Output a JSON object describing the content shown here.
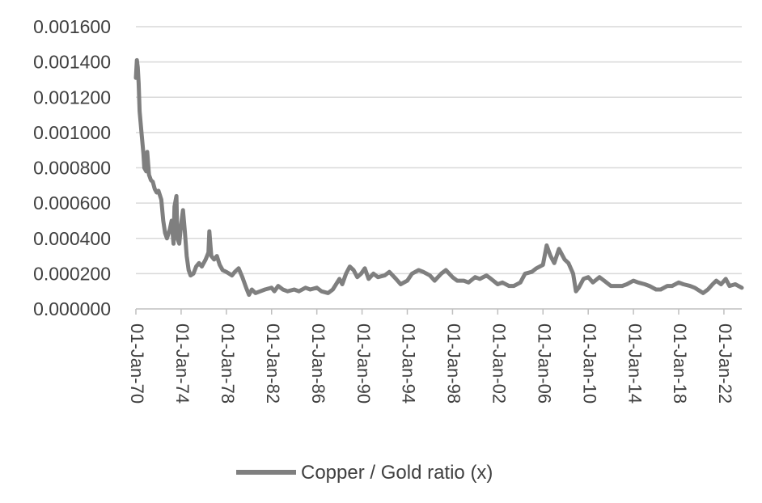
{
  "chart_data": {
    "type": "line",
    "title": "",
    "xlabel": "",
    "ylabel": "",
    "ylim": [
      0,
      0.0016
    ],
    "xlim": [
      "1970-01-01",
      "2023-08-01"
    ],
    "y_ticks": [
      "0.000000",
      "0.000200",
      "0.000400",
      "0.000600",
      "0.000800",
      "0.001000",
      "0.001200",
      "0.001400",
      "0.001600"
    ],
    "x_ticks": [
      {
        "date": "1970-01-01",
        "label": "01-Jan-70"
      },
      {
        "date": "1974-01-01",
        "label": "01-Jan-74"
      },
      {
        "date": "1978-01-01",
        "label": "01-Jan-78"
      },
      {
        "date": "1982-01-01",
        "label": "01-Jan-82"
      },
      {
        "date": "1986-01-01",
        "label": "01-Jan-86"
      },
      {
        "date": "1990-01-01",
        "label": "01-Jan-90"
      },
      {
        "date": "1994-01-01",
        "label": "01-Jan-94"
      },
      {
        "date": "1998-01-01",
        "label": "01-Jan-98"
      },
      {
        "date": "2002-01-01",
        "label": "01-Jan-02"
      },
      {
        "date": "2006-01-01",
        "label": "01-Jan-06"
      },
      {
        "date": "2010-01-01",
        "label": "01-Jan-10"
      },
      {
        "date": "2014-01-01",
        "label": "01-Jan-14"
      },
      {
        "date": "2018-01-01",
        "label": "01-Jan-18"
      },
      {
        "date": "2022-01-01",
        "label": "01-Jan-22"
      }
    ],
    "grid": true,
    "legend_position": "bottom",
    "series": [
      {
        "name": "Copper / Gold ratio (x)",
        "color": "#7f7f7f",
        "points": [
          [
            "1970-01-01",
            0.00131
          ],
          [
            "1970-02-01",
            0.00141
          ],
          [
            "1970-03-01",
            0.00137
          ],
          [
            "1970-04-01",
            0.00128
          ],
          [
            "1970-05-01",
            0.00112
          ],
          [
            "1970-07-01",
            0.001
          ],
          [
            "1970-09-01",
            0.00088
          ],
          [
            "1970-10-01",
            0.0008
          ],
          [
            "1970-12-01",
            0.00078
          ],
          [
            "1971-01-01",
            0.00089
          ],
          [
            "1971-03-01",
            0.00076
          ],
          [
            "1971-05-01",
            0.00073
          ],
          [
            "1971-07-01",
            0.00072
          ],
          [
            "1971-09-01",
            0.00068
          ],
          [
            "1971-11-01",
            0.00066
          ],
          [
            "1972-01-01",
            0.00067
          ],
          [
            "1972-04-01",
            0.00062
          ],
          [
            "1972-06-01",
            0.0005
          ],
          [
            "1972-08-01",
            0.00043
          ],
          [
            "1972-10-01",
            0.0004
          ],
          [
            "1973-01-01",
            0.00045
          ],
          [
            "1973-03-01",
            0.0005
          ],
          [
            "1973-05-01",
            0.00037
          ],
          [
            "1973-06-01",
            0.00058
          ],
          [
            "1973-08-01",
            0.00064
          ],
          [
            "1973-09-01",
            0.0004
          ],
          [
            "1973-11-01",
            0.00037
          ],
          [
            "1974-01-01",
            0.00048
          ],
          [
            "1974-03-01",
            0.00056
          ],
          [
            "1974-05-01",
            0.00044
          ],
          [
            "1974-07-01",
            0.0003
          ],
          [
            "1974-09-01",
            0.00022
          ],
          [
            "1974-11-01",
            0.00019
          ],
          [
            "1975-02-01",
            0.0002
          ],
          [
            "1975-05-01",
            0.00024
          ],
          [
            "1975-08-01",
            0.00026
          ],
          [
            "1975-11-01",
            0.00024
          ],
          [
            "1976-03-01",
            0.00028
          ],
          [
            "1976-06-01",
            0.00032
          ],
          [
            "1976-07-01",
            0.00044
          ],
          [
            "1976-09-01",
            0.0003
          ],
          [
            "1976-12-01",
            0.00028
          ],
          [
            "1977-03-01",
            0.0003
          ],
          [
            "1977-06-01",
            0.00025
          ],
          [
            "1977-09-01",
            0.00022
          ],
          [
            "1978-01-01",
            0.00021
          ],
          [
            "1978-04-01",
            0.0002
          ],
          [
            "1978-07-01",
            0.00019
          ],
          [
            "1978-10-01",
            0.00021
          ],
          [
            "1979-02-01",
            0.00023
          ],
          [
            "1979-06-01",
            0.00018
          ],
          [
            "1979-10-01",
            0.00012
          ],
          [
            "1980-01-01",
            8e-05
          ],
          [
            "1980-04-01",
            0.00011
          ],
          [
            "1980-08-01",
            9e-05
          ],
          [
            "1981-01-01",
            0.0001
          ],
          [
            "1981-06-01",
            0.00011
          ],
          [
            "1982-01-01",
            0.00012
          ],
          [
            "1982-04-01",
            0.0001
          ],
          [
            "1982-08-01",
            0.00013
          ],
          [
            "1983-01-01",
            0.00011
          ],
          [
            "1983-06-01",
            0.0001
          ],
          [
            "1984-01-01",
            0.00011
          ],
          [
            "1984-06-01",
            0.0001
          ],
          [
            "1985-01-01",
            0.00012
          ],
          [
            "1985-06-01",
            0.00011
          ],
          [
            "1986-01-01",
            0.00012
          ],
          [
            "1986-06-01",
            0.0001
          ],
          [
            "1987-01-01",
            9e-05
          ],
          [
            "1987-06-01",
            0.00011
          ],
          [
            "1988-01-01",
            0.00017
          ],
          [
            "1988-04-01",
            0.00014
          ],
          [
            "1988-08-01",
            0.0002
          ],
          [
            "1988-12-01",
            0.00024
          ],
          [
            "1989-04-01",
            0.00022
          ],
          [
            "1989-08-01",
            0.00018
          ],
          [
            "1989-12-01",
            0.0002
          ],
          [
            "1990-04-01",
            0.00023
          ],
          [
            "1990-08-01",
            0.00017
          ],
          [
            "1991-01-01",
            0.0002
          ],
          [
            "1991-06-01",
            0.00018
          ],
          [
            "1992-01-01",
            0.00019
          ],
          [
            "1992-06-01",
            0.00021
          ],
          [
            "1993-01-01",
            0.00017
          ],
          [
            "1993-06-01",
            0.00014
          ],
          [
            "1994-01-01",
            0.00016
          ],
          [
            "1994-06-01",
            0.0002
          ],
          [
            "1995-01-01",
            0.00022
          ],
          [
            "1995-06-01",
            0.00021
          ],
          [
            "1996-01-01",
            0.00019
          ],
          [
            "1996-06-01",
            0.00016
          ],
          [
            "1997-01-01",
            0.0002
          ],
          [
            "1997-06-01",
            0.00022
          ],
          [
            "1998-01-01",
            0.00018
          ],
          [
            "1998-06-01",
            0.00016
          ],
          [
            "1999-01-01",
            0.00016
          ],
          [
            "1999-06-01",
            0.00015
          ],
          [
            "2000-01-01",
            0.00018
          ],
          [
            "2000-06-01",
            0.00017
          ],
          [
            "2001-01-01",
            0.00019
          ],
          [
            "2001-06-01",
            0.00017
          ],
          [
            "2002-01-01",
            0.00014
          ],
          [
            "2002-06-01",
            0.00015
          ],
          [
            "2003-01-01",
            0.00013
          ],
          [
            "2003-06-01",
            0.00013
          ],
          [
            "2004-01-01",
            0.00015
          ],
          [
            "2004-06-01",
            0.0002
          ],
          [
            "2005-01-01",
            0.00021
          ],
          [
            "2005-06-01",
            0.00023
          ],
          [
            "2006-01-01",
            0.00025
          ],
          [
            "2006-05-01",
            0.00036
          ],
          [
            "2006-09-01",
            0.0003
          ],
          [
            "2007-01-01",
            0.00026
          ],
          [
            "2007-06-01",
            0.00034
          ],
          [
            "2007-12-01",
            0.00028
          ],
          [
            "2008-04-01",
            0.00026
          ],
          [
            "2008-09-01",
            0.0002
          ],
          [
            "2008-12-01",
            0.0001
          ],
          [
            "2009-03-01",
            0.00012
          ],
          [
            "2009-08-01",
            0.00017
          ],
          [
            "2010-01-01",
            0.00018
          ],
          [
            "2010-06-01",
            0.00015
          ],
          [
            "2011-01-01",
            0.00018
          ],
          [
            "2011-06-01",
            0.00016
          ],
          [
            "2012-01-01",
            0.00013
          ],
          [
            "2012-06-01",
            0.00013
          ],
          [
            "2013-01-01",
            0.00013
          ],
          [
            "2013-06-01",
            0.00014
          ],
          [
            "2014-01-01",
            0.00016
          ],
          [
            "2014-06-01",
            0.00015
          ],
          [
            "2015-01-01",
            0.00014
          ],
          [
            "2015-06-01",
            0.00013
          ],
          [
            "2016-01-01",
            0.00011
          ],
          [
            "2016-06-01",
            0.00011
          ],
          [
            "2017-01-01",
            0.00013
          ],
          [
            "2017-06-01",
            0.00013
          ],
          [
            "2018-01-01",
            0.00015
          ],
          [
            "2018-06-01",
            0.00014
          ],
          [
            "2019-01-01",
            0.00013
          ],
          [
            "2019-06-01",
            0.00012
          ],
          [
            "2020-03-01",
            9e-05
          ],
          [
            "2020-08-01",
            0.00011
          ],
          [
            "2021-01-01",
            0.00014
          ],
          [
            "2021-05-01",
            0.00016
          ],
          [
            "2021-10-01",
            0.00014
          ],
          [
            "2022-03-01",
            0.00017
          ],
          [
            "2022-07-01",
            0.00013
          ],
          [
            "2023-01-01",
            0.00014
          ],
          [
            "2023-08-01",
            0.00012
          ]
        ]
      }
    ]
  }
}
